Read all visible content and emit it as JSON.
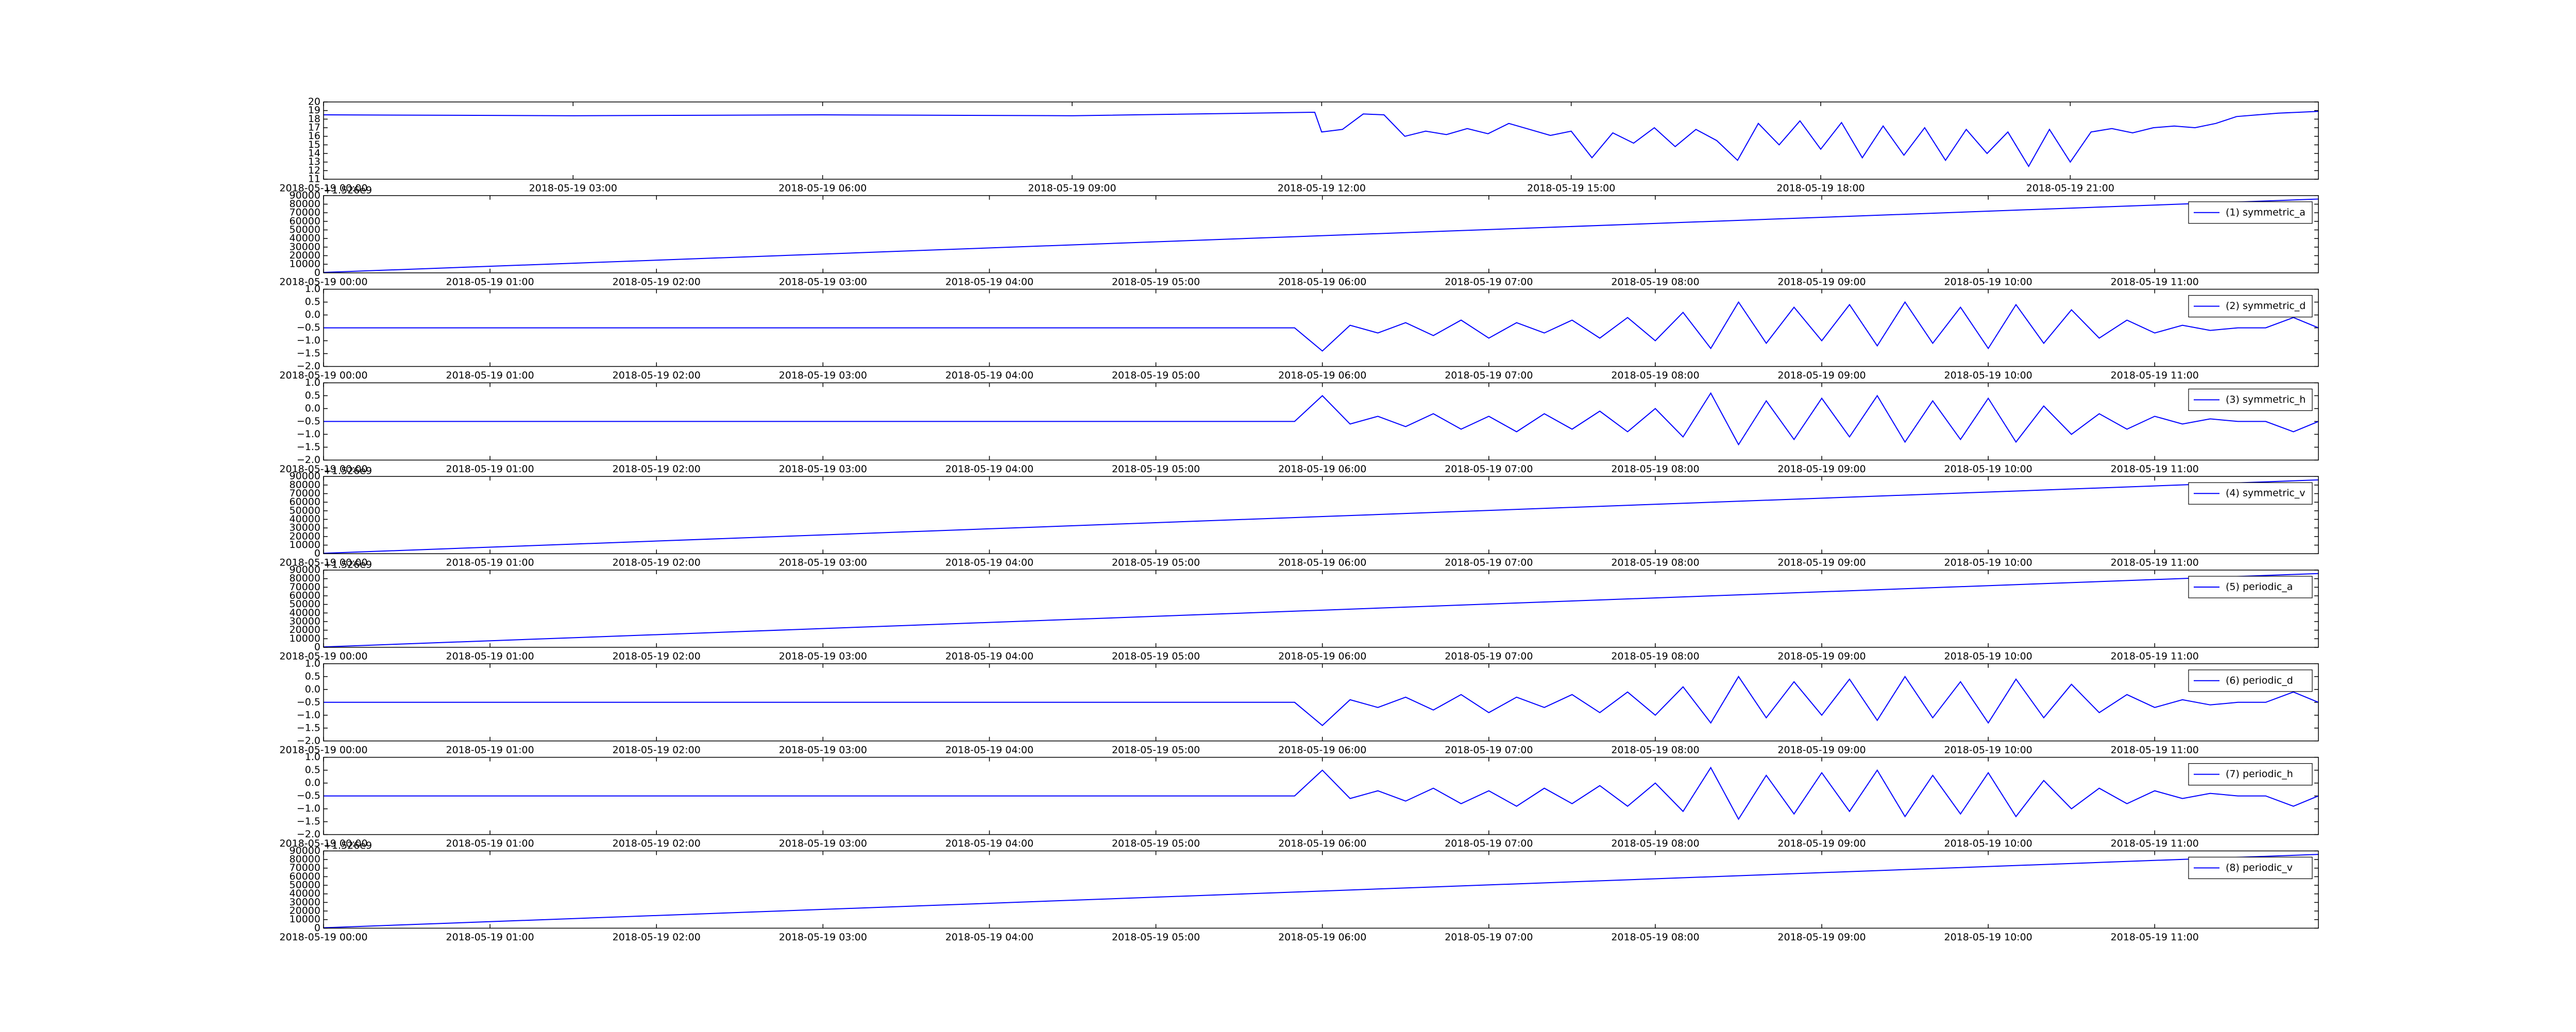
{
  "chart_data": [
    {
      "type": "line",
      "xlim": [
        "2018-05-19 00:00",
        "2018-05-19 23:59"
      ],
      "ylim": [
        11,
        20
      ],
      "yticks": [
        11,
        12,
        13,
        14,
        15,
        16,
        17,
        18,
        19,
        20
      ],
      "xticks": [
        "2018-05-19 00:00",
        "2018-05-19 03:00",
        "2018-05-19 06:00",
        "2018-05-19 09:00",
        "2018-05-19 12:00",
        "2018-05-19 15:00",
        "2018-05-19 18:00",
        "2018-05-19 21:00"
      ],
      "x": [
        "2018-05-19 00:00",
        "2018-05-19 03:00",
        "2018-05-19 06:00",
        "2018-05-19 09:00",
        "2018-05-19 11:55",
        "2018-05-19 12:00",
        "2018-05-19 12:15",
        "2018-05-19 12:30",
        "2018-05-19 12:45",
        "2018-05-19 13:00",
        "2018-05-19 13:15",
        "2018-05-19 13:30",
        "2018-05-19 13:45",
        "2018-05-19 14:00",
        "2018-05-19 14:15",
        "2018-05-19 14:30",
        "2018-05-19 14:45",
        "2018-05-19 15:00",
        "2018-05-19 15:15",
        "2018-05-19 15:30",
        "2018-05-19 15:45",
        "2018-05-19 16:00",
        "2018-05-19 16:15",
        "2018-05-19 16:30",
        "2018-05-19 16:45",
        "2018-05-19 17:00",
        "2018-05-19 17:15",
        "2018-05-19 17:30",
        "2018-05-19 17:45",
        "2018-05-19 18:00",
        "2018-05-19 18:15",
        "2018-05-19 18:30",
        "2018-05-19 18:45",
        "2018-05-19 19:00",
        "2018-05-19 19:15",
        "2018-05-19 19:30",
        "2018-05-19 19:45",
        "2018-05-19 20:00",
        "2018-05-19 20:15",
        "2018-05-19 20:30",
        "2018-05-19 20:45",
        "2018-05-19 21:00",
        "2018-05-19 21:15",
        "2018-05-19 21:30",
        "2018-05-19 21:45",
        "2018-05-19 22:00",
        "2018-05-19 22:15",
        "2018-05-19 22:30",
        "2018-05-19 22:45",
        "2018-05-19 23:00",
        "2018-05-19 23:15",
        "2018-05-19 23:30",
        "2018-05-19 23:45",
        "2018-05-19 23:59"
      ],
      "series": [
        {
          "color": "#0000ff",
          "values": [
            18.5,
            18.4,
            18.5,
            18.4,
            18.8,
            16.5,
            16.8,
            18.6,
            18.5,
            16.0,
            16.6,
            16.2,
            16.9,
            16.3,
            17.5,
            16.8,
            16.1,
            16.6,
            13.5,
            16.4,
            15.2,
            17.0,
            14.8,
            16.8,
            15.5,
            13.2,
            17.5,
            15.0,
            17.8,
            14.5,
            17.6,
            13.5,
            17.2,
            13.8,
            17.0,
            13.2,
            16.8,
            14.0,
            16.5,
            12.5,
            16.8,
            13.0,
            16.5,
            16.9,
            16.4,
            17.0,
            17.2,
            17.0,
            17.5,
            18.3,
            18.5,
            18.7,
            18.8,
            18.9
          ]
        }
      ]
    },
    {
      "type": "line",
      "offset_text": "+1.526e9",
      "legend": "upper right",
      "xlim": [
        "2018-05-19 00:00",
        "2018-05-19 11:59"
      ],
      "ylim": [
        0,
        90000
      ],
      "yticks": [
        0,
        10000,
        20000,
        30000,
        40000,
        50000,
        60000,
        70000,
        80000,
        90000
      ],
      "xticks": [
        "2018-05-19 00:00",
        "2018-05-19 01:00",
        "2018-05-19 02:00",
        "2018-05-19 03:00",
        "2018-05-19 04:00",
        "2018-05-19 05:00",
        "2018-05-19 06:00",
        "2018-05-19 07:00",
        "2018-05-19 08:00",
        "2018-05-19 09:00",
        "2018-05-19 10:00",
        "2018-05-19 11:00"
      ],
      "x": [
        "2018-05-19 00:00",
        "2018-05-19 11:59"
      ],
      "series": [
        {
          "name": "(1) symmetric_a",
          "color": "#0000ff",
          "values": [
            500,
            86000
          ]
        }
      ]
    },
    {
      "type": "line",
      "legend": "upper right",
      "xlim": [
        "2018-05-19 00:00",
        "2018-05-19 11:59"
      ],
      "ylim": [
        -2,
        1
      ],
      "yticks": [
        {
          "value": -2,
          "label": "−2.0"
        },
        {
          "value": -1.5,
          "label": "−1.5"
        },
        {
          "value": -1,
          "label": "−1.0"
        },
        {
          "value": -0.5,
          "label": "−0.5"
        },
        {
          "value": 0,
          "label": "0.0"
        },
        {
          "value": 0.5,
          "label": "0.5"
        },
        {
          "value": 1,
          "label": "1.0"
        }
      ],
      "xticks": [
        "2018-05-19 00:00",
        "2018-05-19 01:00",
        "2018-05-19 02:00",
        "2018-05-19 03:00",
        "2018-05-19 04:00",
        "2018-05-19 05:00",
        "2018-05-19 06:00",
        "2018-05-19 07:00",
        "2018-05-19 08:00",
        "2018-05-19 09:00",
        "2018-05-19 10:00",
        "2018-05-19 11:00"
      ],
      "x": [
        "2018-05-19 00:00",
        "2018-05-19 05:50",
        "2018-05-19 06:00",
        "2018-05-19 06:10",
        "2018-05-19 06:20",
        "2018-05-19 06:30",
        "2018-05-19 06:40",
        "2018-05-19 06:50",
        "2018-05-19 07:00",
        "2018-05-19 07:10",
        "2018-05-19 07:20",
        "2018-05-19 07:30",
        "2018-05-19 07:40",
        "2018-05-19 07:50",
        "2018-05-19 08:00",
        "2018-05-19 08:10",
        "2018-05-19 08:20",
        "2018-05-19 08:30",
        "2018-05-19 08:40",
        "2018-05-19 08:50",
        "2018-05-19 09:00",
        "2018-05-19 09:10",
        "2018-05-19 09:20",
        "2018-05-19 09:30",
        "2018-05-19 09:40",
        "2018-05-19 09:50",
        "2018-05-19 10:00",
        "2018-05-19 10:10",
        "2018-05-19 10:20",
        "2018-05-19 10:30",
        "2018-05-19 10:40",
        "2018-05-19 10:50",
        "2018-05-19 11:00",
        "2018-05-19 11:10",
        "2018-05-19 11:20",
        "2018-05-19 11:30",
        "2018-05-19 11:40",
        "2018-05-19 11:50",
        "2018-05-19 11:59"
      ],
      "series": [
        {
          "name": "(2) symmetric_d",
          "color": "#0000ff",
          "values": [
            -0.5,
            -0.5,
            -1.4,
            -0.4,
            -0.7,
            -0.3,
            -0.8,
            -0.2,
            -0.9,
            -0.3,
            -0.7,
            -0.2,
            -0.9,
            -0.1,
            -1.0,
            0.1,
            -1.3,
            0.5,
            -1.1,
            0.3,
            -1.0,
            0.4,
            -1.2,
            0.5,
            -1.1,
            0.3,
            -1.3,
            0.4,
            -1.1,
            0.2,
            -0.9,
            -0.2,
            -0.7,
            -0.4,
            -0.6,
            -0.5,
            -0.5,
            -0.1,
            -0.5
          ]
        }
      ]
    },
    {
      "type": "line",
      "legend": "upper right",
      "xlim": [
        "2018-05-19 00:00",
        "2018-05-19 11:59"
      ],
      "ylim": [
        -2,
        1
      ],
      "yticks": [
        {
          "value": -2,
          "label": "−2.0"
        },
        {
          "value": -1.5,
          "label": "−1.5"
        },
        {
          "value": -1,
          "label": "−1.0"
        },
        {
          "value": -0.5,
          "label": "−0.5"
        },
        {
          "value": 0,
          "label": "0.0"
        },
        {
          "value": 0.5,
          "label": "0.5"
        },
        {
          "value": 1,
          "label": "1.0"
        }
      ],
      "xticks": [
        "2018-05-19 00:00",
        "2018-05-19 01:00",
        "2018-05-19 02:00",
        "2018-05-19 03:00",
        "2018-05-19 04:00",
        "2018-05-19 05:00",
        "2018-05-19 06:00",
        "2018-05-19 07:00",
        "2018-05-19 08:00",
        "2018-05-19 09:00",
        "2018-05-19 10:00",
        "2018-05-19 11:00"
      ],
      "x": [
        "2018-05-19 00:00",
        "2018-05-19 05:50",
        "2018-05-19 06:00",
        "2018-05-19 06:10",
        "2018-05-19 06:20",
        "2018-05-19 06:30",
        "2018-05-19 06:40",
        "2018-05-19 06:50",
        "2018-05-19 07:00",
        "2018-05-19 07:10",
        "2018-05-19 07:20",
        "2018-05-19 07:30",
        "2018-05-19 07:40",
        "2018-05-19 07:50",
        "2018-05-19 08:00",
        "2018-05-19 08:10",
        "2018-05-19 08:20",
        "2018-05-19 08:30",
        "2018-05-19 08:40",
        "2018-05-19 08:50",
        "2018-05-19 09:00",
        "2018-05-19 09:10",
        "2018-05-19 09:20",
        "2018-05-19 09:30",
        "2018-05-19 09:40",
        "2018-05-19 09:50",
        "2018-05-19 10:00",
        "2018-05-19 10:10",
        "2018-05-19 10:20",
        "2018-05-19 10:30",
        "2018-05-19 10:40",
        "2018-05-19 10:50",
        "2018-05-19 11:00",
        "2018-05-19 11:10",
        "2018-05-19 11:20",
        "2018-05-19 11:30",
        "2018-05-19 11:40",
        "2018-05-19 11:50",
        "2018-05-19 11:59"
      ],
      "series": [
        {
          "name": "(3) symmetric_h",
          "color": "#0000ff",
          "values": [
            -0.5,
            -0.5,
            0.5,
            -0.6,
            -0.3,
            -0.7,
            -0.2,
            -0.8,
            -0.3,
            -0.9,
            -0.2,
            -0.8,
            -0.1,
            -0.9,
            0.0,
            -1.1,
            0.6,
            -1.4,
            0.3,
            -1.2,
            0.4,
            -1.1,
            0.5,
            -1.3,
            0.3,
            -1.2,
            0.4,
            -1.3,
            0.1,
            -1.0,
            -0.2,
            -0.8,
            -0.3,
            -0.6,
            -0.4,
            -0.5,
            -0.5,
            -0.9,
            -0.5
          ]
        }
      ]
    },
    {
      "type": "line",
      "offset_text": "+1.526e9",
      "legend": "upper right",
      "xlim": [
        "2018-05-19 00:00",
        "2018-05-19 11:59"
      ],
      "ylim": [
        0,
        90000
      ],
      "yticks": [
        0,
        10000,
        20000,
        30000,
        40000,
        50000,
        60000,
        70000,
        80000,
        90000
      ],
      "xticks": [
        "2018-05-19 00:00",
        "2018-05-19 01:00",
        "2018-05-19 02:00",
        "2018-05-19 03:00",
        "2018-05-19 04:00",
        "2018-05-19 05:00",
        "2018-05-19 06:00",
        "2018-05-19 07:00",
        "2018-05-19 08:00",
        "2018-05-19 09:00",
        "2018-05-19 10:00",
        "2018-05-19 11:00"
      ],
      "x": [
        "2018-05-19 00:00",
        "2018-05-19 11:59"
      ],
      "series": [
        {
          "name": "(4) symmetric_v",
          "color": "#0000ff",
          "values": [
            500,
            86000
          ]
        }
      ]
    },
    {
      "type": "line",
      "offset_text": "+1.526e9",
      "legend": "upper right",
      "xlim": [
        "2018-05-19 00:00",
        "2018-05-19 11:59"
      ],
      "ylim": [
        0,
        90000
      ],
      "yticks": [
        0,
        10000,
        20000,
        30000,
        40000,
        50000,
        60000,
        70000,
        80000,
        90000
      ],
      "xticks": [
        "2018-05-19 00:00",
        "2018-05-19 01:00",
        "2018-05-19 02:00",
        "2018-05-19 03:00",
        "2018-05-19 04:00",
        "2018-05-19 05:00",
        "2018-05-19 06:00",
        "2018-05-19 07:00",
        "2018-05-19 08:00",
        "2018-05-19 09:00",
        "2018-05-19 10:00",
        "2018-05-19 11:00"
      ],
      "x": [
        "2018-05-19 00:00",
        "2018-05-19 11:59"
      ],
      "series": [
        {
          "name": "(5) periodic_a",
          "color": "#0000ff",
          "values": [
            500,
            86000
          ]
        }
      ]
    },
    {
      "type": "line",
      "legend": "upper right",
      "xlim": [
        "2018-05-19 00:00",
        "2018-05-19 11:59"
      ],
      "ylim": [
        -2,
        1
      ],
      "yticks": [
        {
          "value": -2,
          "label": "−2.0"
        },
        {
          "value": -1.5,
          "label": "−1.5"
        },
        {
          "value": -1,
          "label": "−1.0"
        },
        {
          "value": -0.5,
          "label": "−0.5"
        },
        {
          "value": 0,
          "label": "0.0"
        },
        {
          "value": 0.5,
          "label": "0.5"
        },
        {
          "value": 1,
          "label": "1.0"
        }
      ],
      "xticks": [
        "2018-05-19 00:00",
        "2018-05-19 01:00",
        "2018-05-19 02:00",
        "2018-05-19 03:00",
        "2018-05-19 04:00",
        "2018-05-19 05:00",
        "2018-05-19 06:00",
        "2018-05-19 07:00",
        "2018-05-19 08:00",
        "2018-05-19 09:00",
        "2018-05-19 10:00",
        "2018-05-19 11:00"
      ],
      "x": [
        "2018-05-19 00:00",
        "2018-05-19 05:50",
        "2018-05-19 06:00",
        "2018-05-19 06:10",
        "2018-05-19 06:20",
        "2018-05-19 06:30",
        "2018-05-19 06:40",
        "2018-05-19 06:50",
        "2018-05-19 07:00",
        "2018-05-19 07:10",
        "2018-05-19 07:20",
        "2018-05-19 07:30",
        "2018-05-19 07:40",
        "2018-05-19 07:50",
        "2018-05-19 08:00",
        "2018-05-19 08:10",
        "2018-05-19 08:20",
        "2018-05-19 08:30",
        "2018-05-19 08:40",
        "2018-05-19 08:50",
        "2018-05-19 09:00",
        "2018-05-19 09:10",
        "2018-05-19 09:20",
        "2018-05-19 09:30",
        "2018-05-19 09:40",
        "2018-05-19 09:50",
        "2018-05-19 10:00",
        "2018-05-19 10:10",
        "2018-05-19 10:20",
        "2018-05-19 10:30",
        "2018-05-19 10:40",
        "2018-05-19 10:50",
        "2018-05-19 11:00",
        "2018-05-19 11:10",
        "2018-05-19 11:20",
        "2018-05-19 11:30",
        "2018-05-19 11:40",
        "2018-05-19 11:50",
        "2018-05-19 11:59"
      ],
      "series": [
        {
          "name": "(6) periodic_d",
          "color": "#0000ff",
          "values": [
            -0.5,
            -0.5,
            -1.4,
            -0.4,
            -0.7,
            -0.3,
            -0.8,
            -0.2,
            -0.9,
            -0.3,
            -0.7,
            -0.2,
            -0.9,
            -0.1,
            -1.0,
            0.1,
            -1.3,
            0.5,
            -1.1,
            0.3,
            -1.0,
            0.4,
            -1.2,
            0.5,
            -1.1,
            0.3,
            -1.3,
            0.4,
            -1.1,
            0.2,
            -0.9,
            -0.2,
            -0.7,
            -0.4,
            -0.6,
            -0.5,
            -0.5,
            -0.1,
            -0.5
          ]
        }
      ]
    },
    {
      "type": "line",
      "legend": "upper right",
      "xlim": [
        "2018-05-19 00:00",
        "2018-05-19 11:59"
      ],
      "ylim": [
        -2,
        1
      ],
      "yticks": [
        {
          "value": -2,
          "label": "−2.0"
        },
        {
          "value": -1.5,
          "label": "−1.5"
        },
        {
          "value": -1,
          "label": "−1.0"
        },
        {
          "value": -0.5,
          "label": "−0.5"
        },
        {
          "value": 0,
          "label": "0.0"
        },
        {
          "value": 0.5,
          "label": "0.5"
        },
        {
          "value": 1,
          "label": "1.0"
        }
      ],
      "xticks": [
        "2018-05-19 00:00",
        "2018-05-19 01:00",
        "2018-05-19 02:00",
        "2018-05-19 03:00",
        "2018-05-19 04:00",
        "2018-05-19 05:00",
        "2018-05-19 06:00",
        "2018-05-19 07:00",
        "2018-05-19 08:00",
        "2018-05-19 09:00",
        "2018-05-19 10:00",
        "2018-05-19 11:00"
      ],
      "x": [
        "2018-05-19 00:00",
        "2018-05-19 05:50",
        "2018-05-19 06:00",
        "2018-05-19 06:10",
        "2018-05-19 06:20",
        "2018-05-19 06:30",
        "2018-05-19 06:40",
        "2018-05-19 06:50",
        "2018-05-19 07:00",
        "2018-05-19 07:10",
        "2018-05-19 07:20",
        "2018-05-19 07:30",
        "2018-05-19 07:40",
        "2018-05-19 07:50",
        "2018-05-19 08:00",
        "2018-05-19 08:10",
        "2018-05-19 08:20",
        "2018-05-19 08:30",
        "2018-05-19 08:40",
        "2018-05-19 08:50",
        "2018-05-19 09:00",
        "2018-05-19 09:10",
        "2018-05-19 09:20",
        "2018-05-19 09:30",
        "2018-05-19 09:40",
        "2018-05-19 09:50",
        "2018-05-19 10:00",
        "2018-05-19 10:10",
        "2018-05-19 10:20",
        "2018-05-19 10:30",
        "2018-05-19 10:40",
        "2018-05-19 10:50",
        "2018-05-19 11:00",
        "2018-05-19 11:10",
        "2018-05-19 11:20",
        "2018-05-19 11:30",
        "2018-05-19 11:40",
        "2018-05-19 11:50",
        "2018-05-19 11:59"
      ],
      "series": [
        {
          "name": "(7) periodic_h",
          "color": "#0000ff",
          "values": [
            -0.5,
            -0.5,
            0.5,
            -0.6,
            -0.3,
            -0.7,
            -0.2,
            -0.8,
            -0.3,
            -0.9,
            -0.2,
            -0.8,
            -0.1,
            -0.9,
            0.0,
            -1.1,
            0.6,
            -1.4,
            0.3,
            -1.2,
            0.4,
            -1.1,
            0.5,
            -1.3,
            0.3,
            -1.2,
            0.4,
            -1.3,
            0.1,
            -1.0,
            -0.2,
            -0.8,
            -0.3,
            -0.6,
            -0.4,
            -0.5,
            -0.5,
            -0.9,
            -0.5
          ]
        }
      ]
    },
    {
      "type": "line",
      "offset_text": "+1.526e9",
      "legend": "upper right",
      "xlim": [
        "2018-05-19 00:00",
        "2018-05-19 11:59"
      ],
      "ylim": [
        0,
        90000
      ],
      "yticks": [
        0,
        10000,
        20000,
        30000,
        40000,
        50000,
        60000,
        70000,
        80000,
        90000
      ],
      "xticks": [
        "2018-05-19 00:00",
        "2018-05-19 01:00",
        "2018-05-19 02:00",
        "2018-05-19 03:00",
        "2018-05-19 04:00",
        "2018-05-19 05:00",
        "2018-05-19 06:00",
        "2018-05-19 07:00",
        "2018-05-19 08:00",
        "2018-05-19 09:00",
        "2018-05-19 10:00",
        "2018-05-19 11:00"
      ],
      "x": [
        "2018-05-19 00:00",
        "2018-05-19 11:59"
      ],
      "series": [
        {
          "name": "(8) periodic_v",
          "color": "#0000ff",
          "values": [
            500,
            86000
          ]
        }
      ]
    }
  ]
}
